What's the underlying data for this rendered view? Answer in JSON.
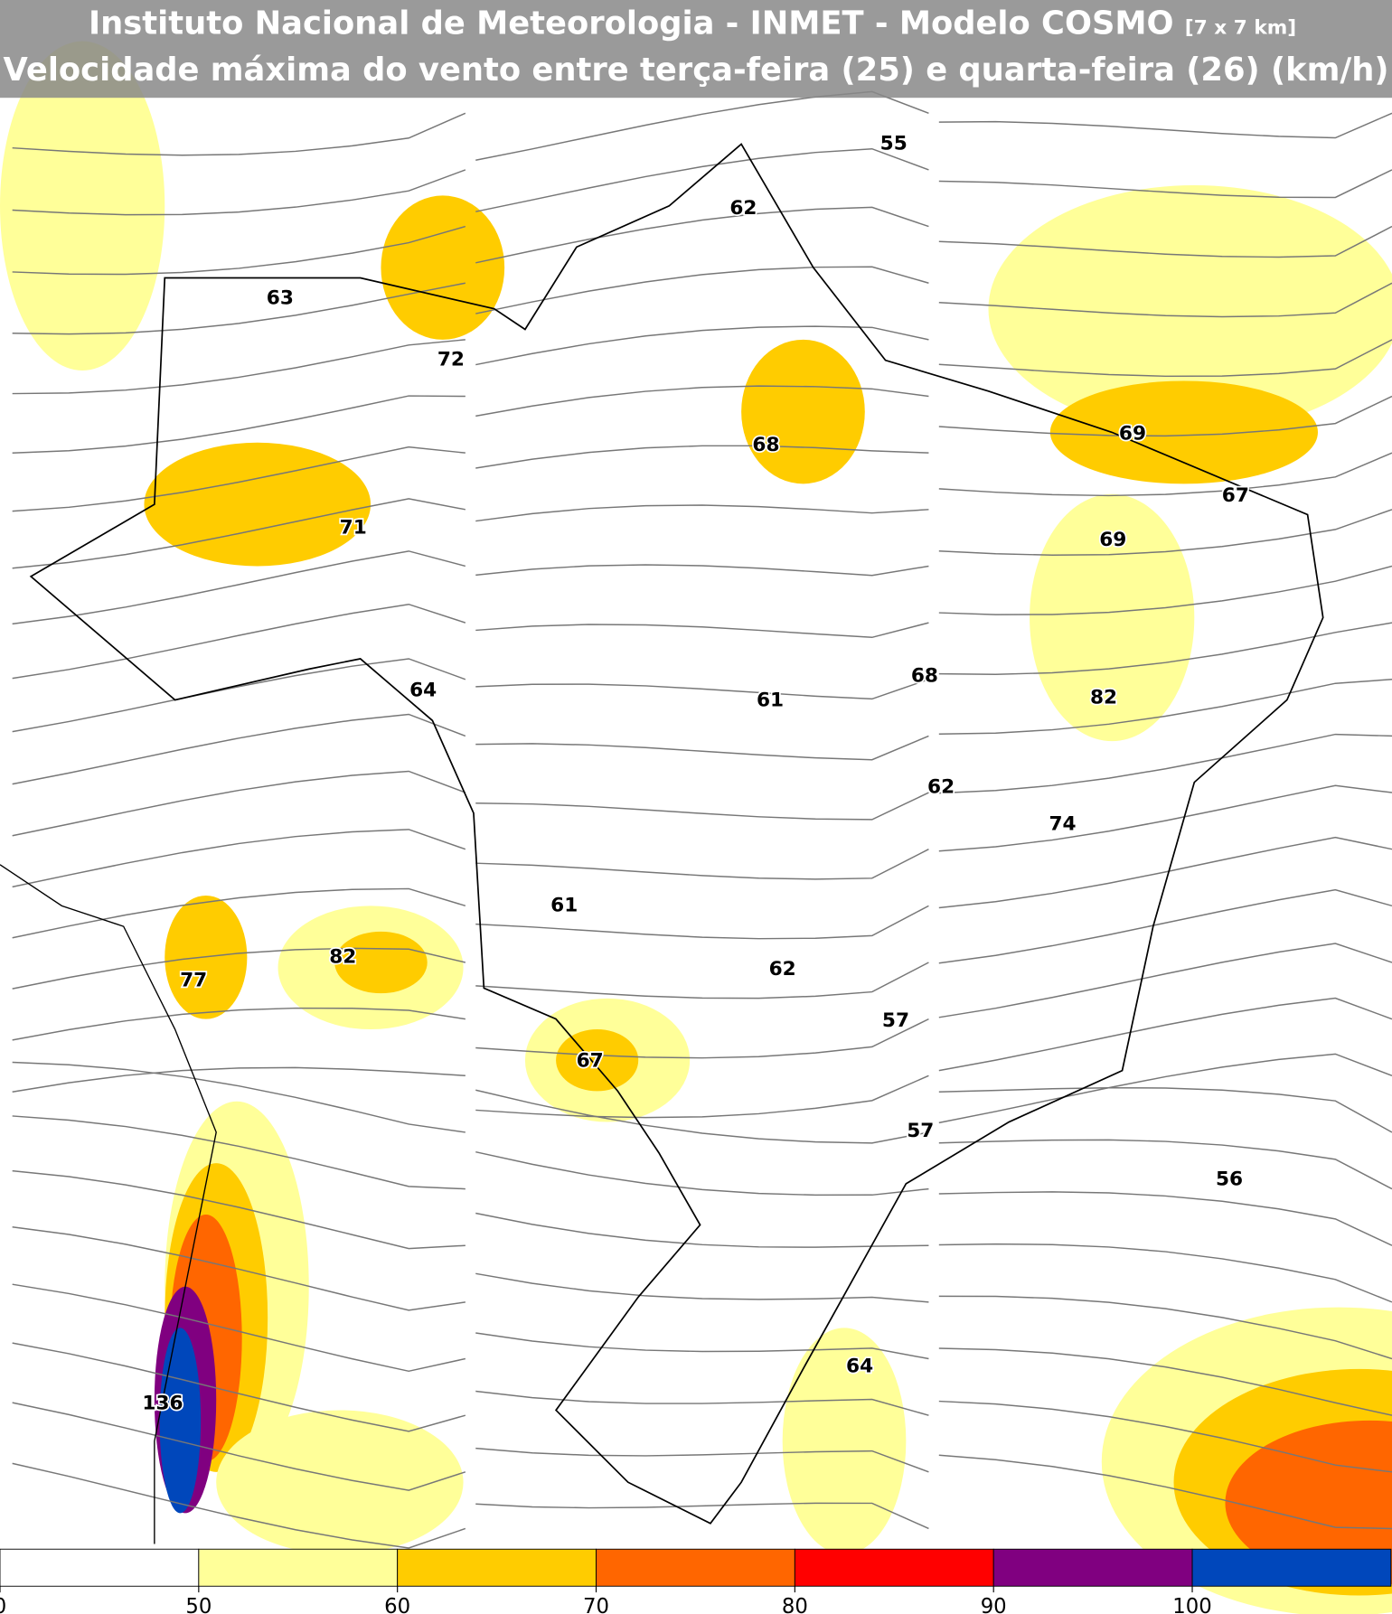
{
  "header": {
    "title": "Instituto Nacional de Meteorologia - INMET - Modelo COSMO",
    "title_note": "[7 x 7 km]",
    "subtitle": "Velocidade máxima do vento entre terça-feira (25) e quarta-feira (26) (km/h)"
  },
  "wind_maxima": [
    55,
    62,
    63,
    72,
    68,
    69,
    71,
    67,
    69,
    64,
    61,
    68,
    82,
    62,
    74,
    61,
    82,
    77,
    62,
    57,
    67,
    57,
    56,
    64,
    136
  ],
  "colorbar": {
    "ticks": [
      0,
      50,
      60,
      70,
      80,
      90,
      100
    ],
    "colors": [
      "#ffffff",
      "#ffff99",
      "#ffcc00",
      "#ff6600",
      "#ff0000",
      "#800080",
      "#0047bb"
    ]
  }
}
